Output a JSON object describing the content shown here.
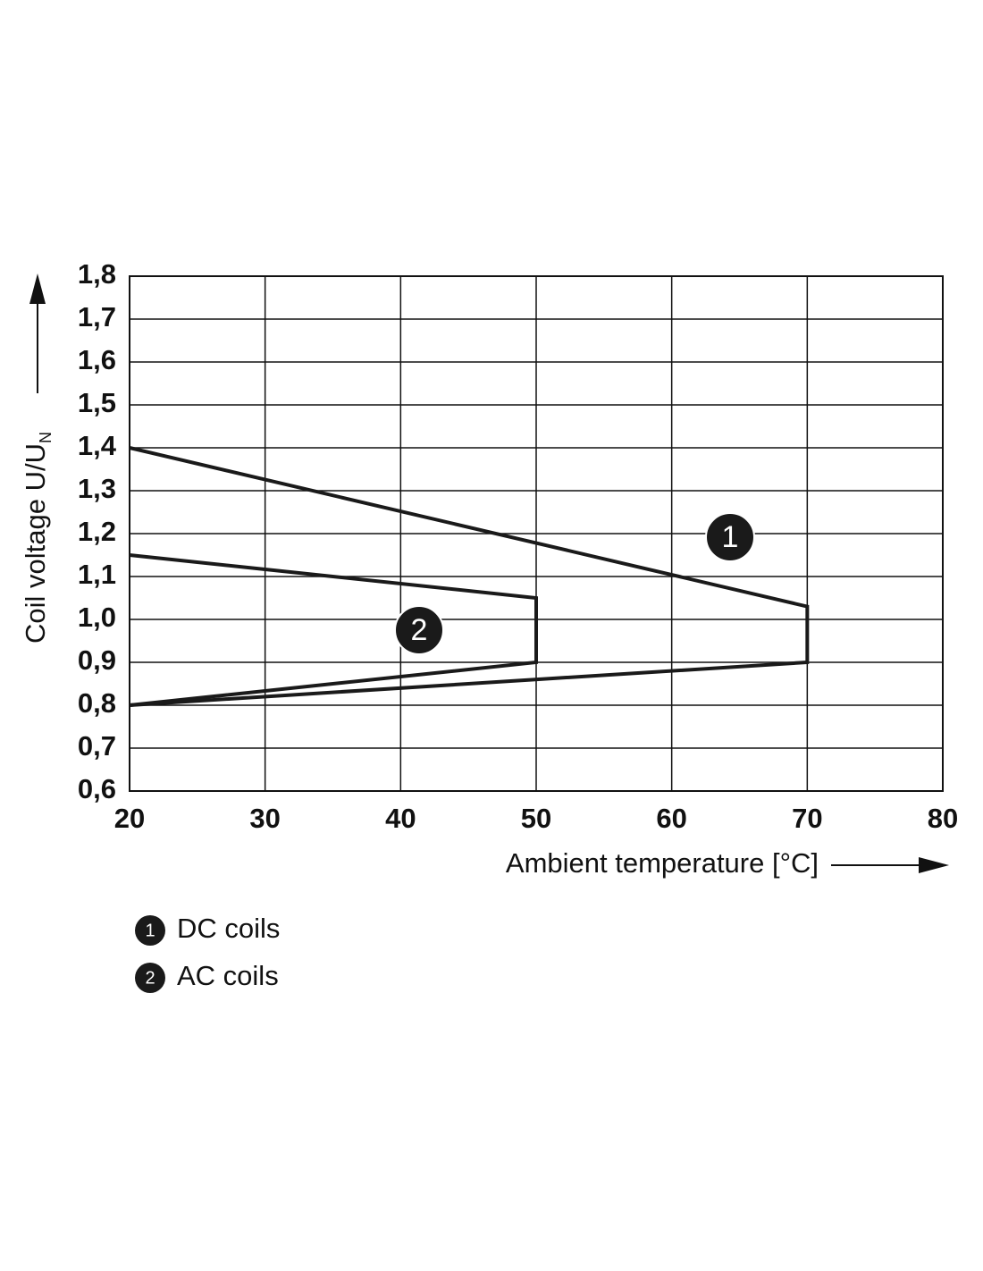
{
  "chart_data": {
    "type": "line",
    "xlabel": "Ambient temperature [°C]",
    "ylabel": {
      "text": "Coil voltage U/U",
      "subscript": "N"
    },
    "xlim": [
      20,
      80
    ],
    "xticks": [
      20,
      30,
      40,
      50,
      60,
      70,
      80
    ],
    "ylim": [
      0.6,
      1.8
    ],
    "yticks": [
      {
        "value": 0.6,
        "label": "0,6"
      },
      {
        "value": 0.7,
        "label": "0,7"
      },
      {
        "value": 0.8,
        "label": "0,8"
      },
      {
        "value": 0.9,
        "label": "0,9"
      },
      {
        "value": 1.0,
        "label": "1,0"
      },
      {
        "value": 1.1,
        "label": "1,1"
      },
      {
        "value": 1.2,
        "label": "1,2"
      },
      {
        "value": 1.3,
        "label": "1,3"
      },
      {
        "value": 1.4,
        "label": "1,4"
      },
      {
        "value": 1.5,
        "label": "1,5"
      },
      {
        "value": 1.6,
        "label": "1,6"
      },
      {
        "value": 1.7,
        "label": "1,7"
      },
      {
        "value": 1.8,
        "label": "1,8"
      }
    ],
    "grid": true,
    "series": [
      {
        "name": "DC coils",
        "marker": "1",
        "color": "#1a1a1a",
        "x": [
          20,
          70,
          70,
          20
        ],
        "values": [
          1.4,
          1.03,
          0.9,
          0.8
        ]
      },
      {
        "name": "AC coils",
        "marker": "2",
        "color": "#1a1a1a",
        "x": [
          20,
          50,
          50,
          20
        ],
        "values": [
          1.15,
          1.05,
          0.9,
          0.8
        ]
      }
    ]
  }
}
